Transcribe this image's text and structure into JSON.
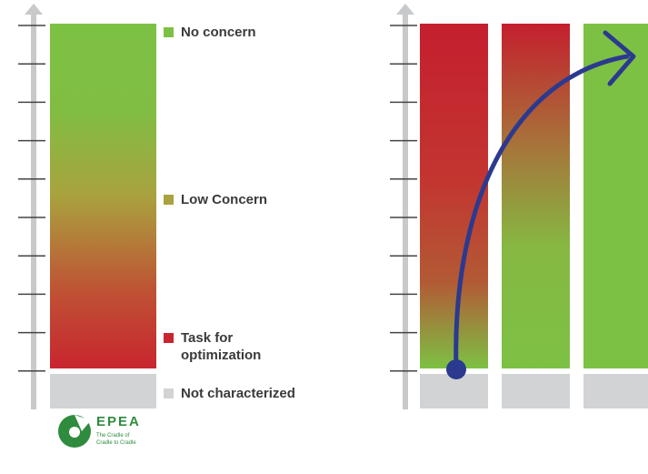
{
  "colors": {
    "no_concern": "#7dc144",
    "low_concern": "#a9a23e",
    "task_for_optimization": "#c9252f",
    "not_characterized": "#d2d3d5",
    "axis": "#c8c9cb",
    "arrow": "#2b3a8f",
    "logo": "#2f8b3e"
  },
  "legend": [
    {
      "key": "no_concern",
      "label": "No concern"
    },
    {
      "key": "low_concern",
      "label": "Low Concern"
    },
    {
      "key": "task_for_optimization",
      "label": "Task for\noptimization"
    },
    {
      "key": "not_characterized",
      "label": "Not characterized"
    }
  ],
  "logo": {
    "title": "EPEA",
    "tagline_1": "The Cradle of",
    "tagline_2": "Cradle to Cradle"
  }
}
